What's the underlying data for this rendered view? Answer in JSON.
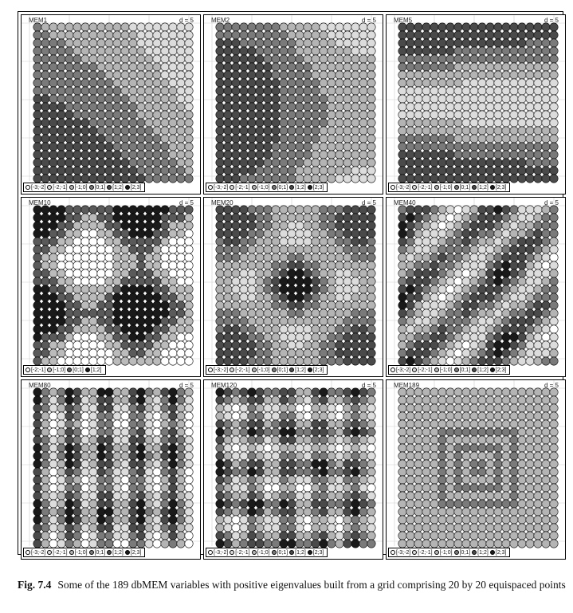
{
  "figure": {
    "caption_label": "Fig. 7.4",
    "caption_text": "Some of the 189 dbMEM variables with positive eigenvalues built from a grid comprising 20 by 20 equispaced points"
  },
  "panels": [
    {
      "title": "MEM1",
      "d": "d = 5",
      "id": 1,
      "legend": [
        "[-3;-2]",
        "[-2;-1]",
        "[-1;0]",
        "[0;1]",
        "[1;2]",
        "[2;3]"
      ]
    },
    {
      "title": "MEM2",
      "d": "d = 5",
      "id": 2,
      "legend": [
        "[-3;-2]",
        "[-2;-1]",
        "[-1;0]",
        "[0;1]",
        "[1;2]",
        "[2;3]"
      ]
    },
    {
      "title": "MEM5",
      "d": "d = 5",
      "id": 5,
      "legend": [
        "[-3;-2]",
        "[-2;-1]",
        "[-1;0]",
        "[0;1]",
        "[1;2]",
        "[2;3]"
      ]
    },
    {
      "title": "MEM10",
      "d": "d = 5",
      "id": 10,
      "legend": [
        "[-2;-1]",
        "[-1;0]",
        "[0;1]",
        "[1;2]"
      ]
    },
    {
      "title": "MEM20",
      "d": "d = 5",
      "id": 20,
      "legend": [
        "[-3;-2]",
        "[-2;-1]",
        "[-1;0]",
        "[0;1]",
        "[1;2]",
        "[2;3]"
      ]
    },
    {
      "title": "MEM40",
      "d": "d = 5",
      "id": 40,
      "legend": [
        "[-3;-2]",
        "[-2;-1]",
        "[-1;0]",
        "[0;1]",
        "[1;2]",
        "[2;3]"
      ]
    },
    {
      "title": "MEM80",
      "d": "d = 5",
      "id": 80,
      "legend": [
        "[-3;-2]",
        "[-2;-1]",
        "[-1;0]",
        "[0;1]",
        "[1;2]",
        "[2;3]"
      ]
    },
    {
      "title": "MEM120",
      "d": "d = 5",
      "id": 120,
      "legend": [
        "[-3;-2]",
        "[-2;-1]",
        "[-1;0]",
        "[0;1]",
        "[1;2]",
        "[2;3]"
      ]
    },
    {
      "title": "MEM189",
      "d": "d = 5",
      "id": 189,
      "legend": [
        "[-3;-2]",
        "[-2;-1]",
        "[-1;0]",
        "[0;1]",
        "[1;2]",
        "[2;3]"
      ]
    }
  ],
  "colors": {
    "shades6": [
      "#ffffff",
      "#dcdcdc",
      "#b4b4b4",
      "#7a7a7a",
      "#4a4a4a",
      "#1a1a1a"
    ],
    "shades4": [
      "#ffffff",
      "#bbbbbb",
      "#5a5a5a",
      "#1a1a1a"
    ],
    "grid": "#cfcfcf"
  }
}
